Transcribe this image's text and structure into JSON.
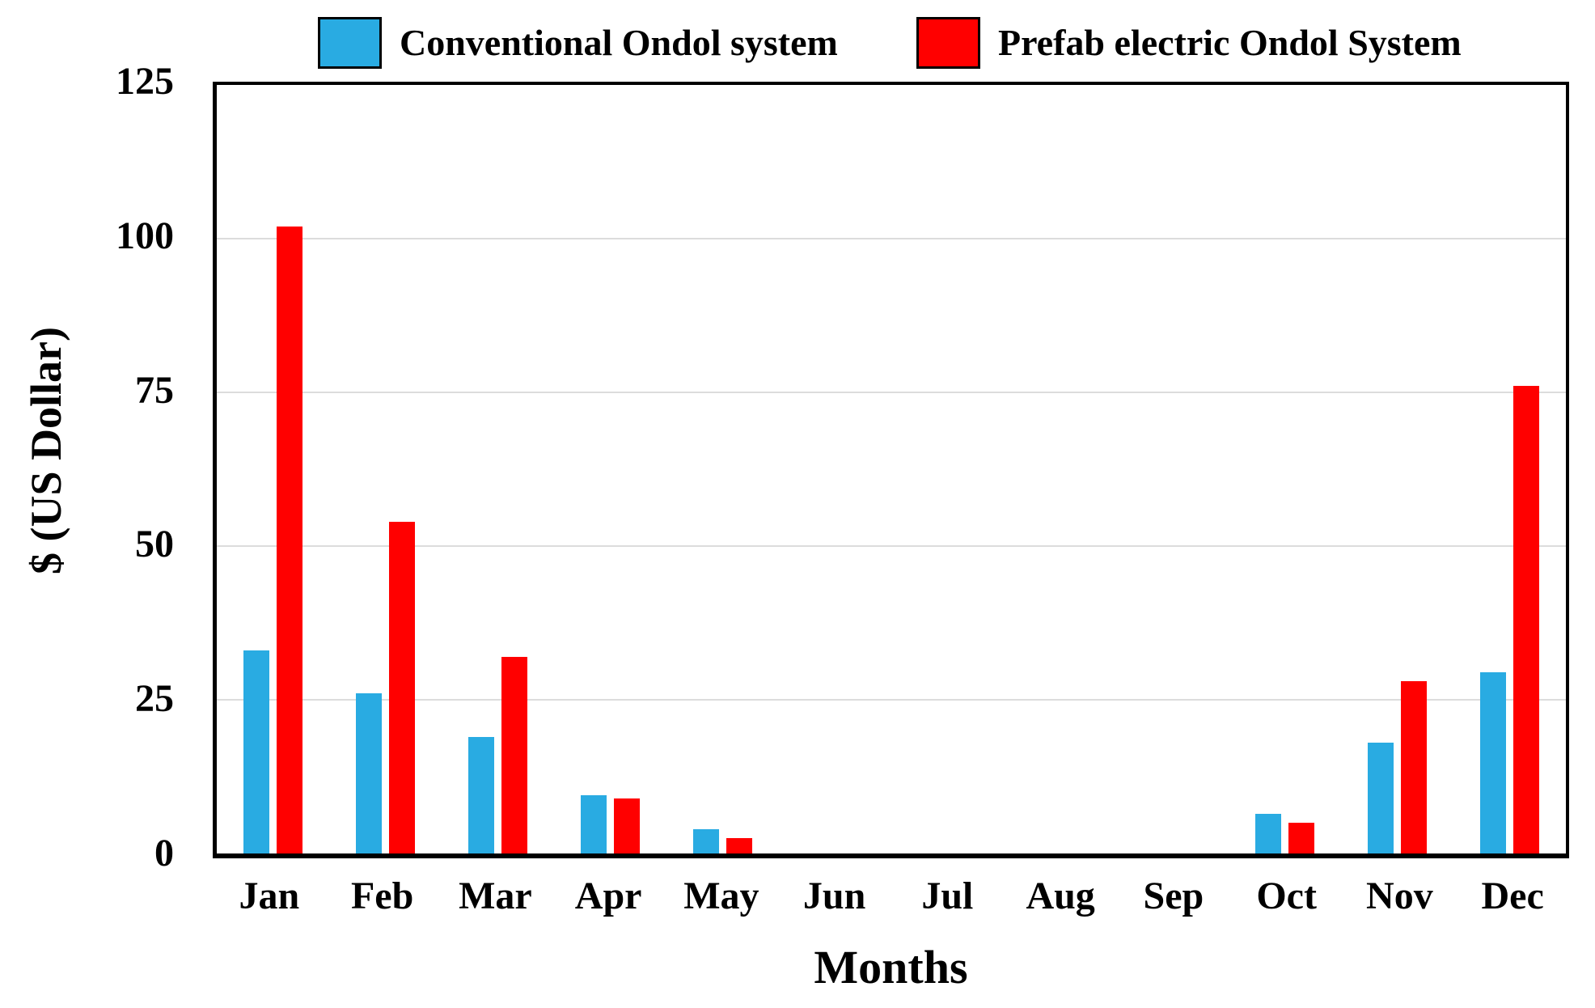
{
  "legend": {
    "items": [
      {
        "label": "Conventional Ondol system",
        "color": "#29ABE2"
      },
      {
        "label": "Prefab electric Ondol System",
        "color": "#FF0000"
      }
    ]
  },
  "chart_data": {
    "type": "bar",
    "title": "",
    "xlabel": "Months",
    "ylabel": "$ (US Dollar)",
    "categories": [
      "Jan",
      "Feb",
      "Mar",
      "Apr",
      "May",
      "Jun",
      "Jul",
      "Aug",
      "Sep",
      "Oct",
      "Nov",
      "Dec"
    ],
    "series": [
      {
        "name": "Conventional Ondol system",
        "color": "#29ABE2",
        "values": [
          33,
          26,
          19,
          9.5,
          4,
          0,
          0,
          0,
          0,
          6.5,
          18,
          29.5
        ]
      },
      {
        "name": "Prefab electric Ondol System",
        "color": "#FF0000",
        "values": [
          102,
          54,
          32,
          9,
          2.5,
          0,
          0,
          0,
          0,
          5,
          28,
          76
        ]
      }
    ],
    "ylim": [
      0,
      125
    ],
    "yticks": [
      0,
      25,
      50,
      75,
      100,
      125
    ],
    "grid": "horizontal",
    "gridline_color": "#DCDCDC",
    "axis_color": "#000000",
    "legend_position": "top"
  }
}
